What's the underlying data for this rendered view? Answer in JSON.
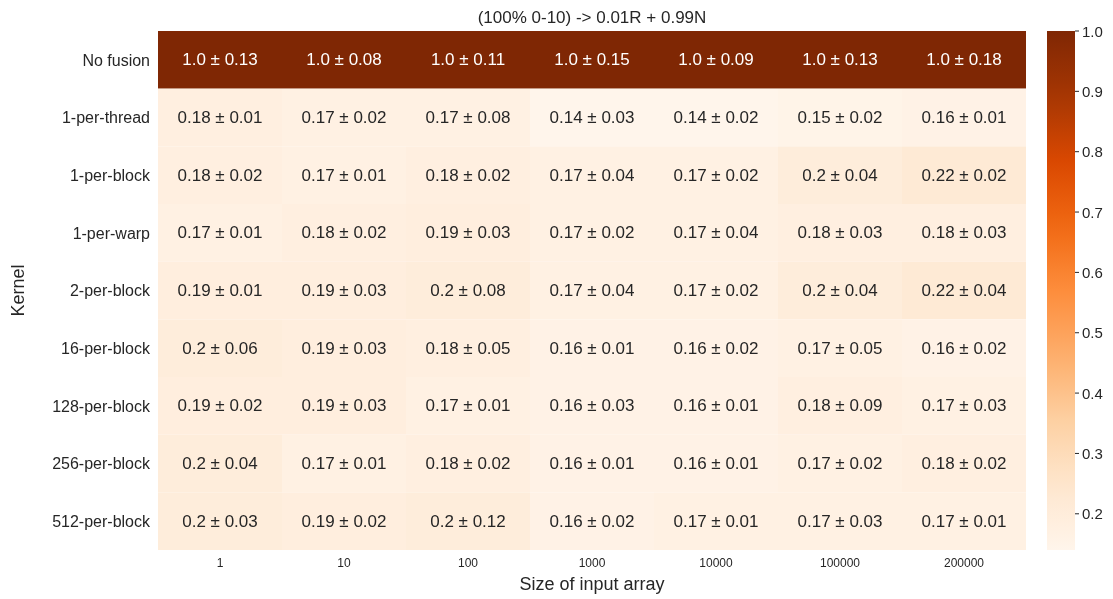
{
  "chart_data": {
    "type": "heatmap",
    "title": "(100% 0-10) -> 0.01R + 0.99N",
    "xlabel": "Size of input array",
    "ylabel": "Kernel",
    "categories": [
      "1",
      "10",
      "100",
      "1000",
      "10000",
      "100000",
      "200000"
    ],
    "y_categories": [
      "No fusion",
      "1-per-thread",
      "1-per-block",
      "1-per-warp",
      "2-per-block",
      "16-per-block",
      "128-per-block",
      "256-per-block",
      "512-per-block"
    ],
    "cells": [
      [
        1.0,
        1.0,
        1.0,
        1.0,
        1.0,
        1.0,
        1.0
      ],
      [
        0.18,
        0.17,
        0.17,
        0.14,
        0.14,
        0.15,
        0.16
      ],
      [
        0.18,
        0.17,
        0.18,
        0.17,
        0.17,
        0.2,
        0.22
      ],
      [
        0.17,
        0.18,
        0.19,
        0.17,
        0.17,
        0.18,
        0.18
      ],
      [
        0.19,
        0.19,
        0.2,
        0.17,
        0.17,
        0.2,
        0.22
      ],
      [
        0.2,
        0.19,
        0.18,
        0.16,
        0.16,
        0.17,
        0.16
      ],
      [
        0.19,
        0.19,
        0.17,
        0.16,
        0.16,
        0.18,
        0.17
      ],
      [
        0.2,
        0.17,
        0.18,
        0.16,
        0.16,
        0.17,
        0.18
      ],
      [
        0.2,
        0.19,
        0.2,
        0.16,
        0.17,
        0.17,
        0.17
      ]
    ],
    "cell_labels": [
      [
        "1.0 ± 0.13",
        "1.0 ± 0.08",
        "1.0 ± 0.11",
        "1.0 ± 0.15",
        "1.0 ± 0.09",
        "1.0 ± 0.13",
        "1.0 ± 0.18"
      ],
      [
        "0.18 ± 0.01",
        "0.17 ± 0.02",
        "0.17 ± 0.08",
        "0.14 ± 0.03",
        "0.14 ± 0.02",
        "0.15 ± 0.02",
        "0.16 ± 0.01"
      ],
      [
        "0.18 ± 0.02",
        "0.17 ± 0.01",
        "0.18 ± 0.02",
        "0.17 ± 0.04",
        "0.17 ± 0.02",
        "0.2 ± 0.04",
        "0.22 ± 0.02"
      ],
      [
        "0.17 ± 0.01",
        "0.18 ± 0.02",
        "0.19 ± 0.03",
        "0.17 ± 0.02",
        "0.17 ± 0.04",
        "0.18 ± 0.03",
        "0.18 ± 0.03"
      ],
      [
        "0.19 ± 0.01",
        "0.19 ± 0.03",
        "0.2 ± 0.08",
        "0.17 ± 0.04",
        "0.17 ± 0.02",
        "0.2 ± 0.04",
        "0.22 ± 0.04"
      ],
      [
        "0.2 ± 0.06",
        "0.19 ± 0.03",
        "0.18 ± 0.05",
        "0.16 ± 0.01",
        "0.16 ± 0.02",
        "0.17 ± 0.05",
        "0.16 ± 0.02"
      ],
      [
        "0.19 ± 0.02",
        "0.19 ± 0.03",
        "0.17 ± 0.01",
        "0.16 ± 0.03",
        "0.16 ± 0.01",
        "0.18 ± 0.09",
        "0.17 ± 0.03"
      ],
      [
        "0.2 ± 0.04",
        "0.17 ± 0.01",
        "0.18 ± 0.02",
        "0.16 ± 0.01",
        "0.16 ± 0.01",
        "0.17 ± 0.02",
        "0.18 ± 0.02"
      ],
      [
        "0.2 ± 0.03",
        "0.19 ± 0.02",
        "0.2 ± 0.12",
        "0.16 ± 0.02",
        "0.17 ± 0.01",
        "0.17 ± 0.03",
        "0.17 ± 0.01"
      ]
    ],
    "clim": [
      0.14,
      1.0
    ],
    "cticks": [
      0.2,
      0.3,
      0.4,
      0.5,
      0.6,
      0.7,
      0.8,
      0.9,
      {
        "value": 1.0,
        "label": "1.0"
      }
    ]
  }
}
